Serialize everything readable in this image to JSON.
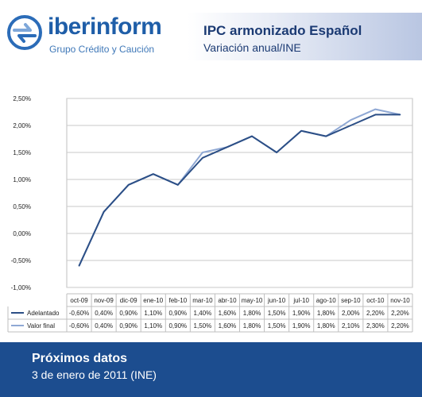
{
  "header": {
    "brand_name": "iberinform",
    "brand_subtitle": "Grupo Crédito y Caución",
    "title": "IPC armonizado Español",
    "subtitle": "Variación anual/INE"
  },
  "footer": {
    "title": "Próximos datos",
    "date": "3 de enero de 2011 (INE)"
  },
  "colors": {
    "adelantado": "#2c4f86",
    "valor_final": "#8fa8d4",
    "footer_bg": "#1c4d8f",
    "brand": "#1f5ea8"
  },
  "chart_data": {
    "type": "line",
    "categories": [
      "oct-09",
      "nov-09",
      "dic-09",
      "ene-10",
      "feb-10",
      "mar-10",
      "abr-10",
      "may-10",
      "jun-10",
      "jul-10",
      "ago-10",
      "sep-10",
      "oct-10",
      "nov-10"
    ],
    "series": [
      {
        "name": "Adelantado",
        "values": [
          -0.6,
          0.4,
          0.9,
          1.1,
          0.9,
          1.4,
          1.6,
          1.8,
          1.5,
          1.9,
          1.8,
          2.0,
          2.2,
          2.2
        ],
        "labels": [
          "-0,60%",
          "0,40%",
          "0,90%",
          "1,10%",
          "0,90%",
          "1,40%",
          "1,60%",
          "1,80%",
          "1,50%",
          "1,90%",
          "1,80%",
          "2,00%",
          "2,20%",
          "2,20%"
        ]
      },
      {
        "name": "Valor final",
        "values": [
          -0.6,
          0.4,
          0.9,
          1.1,
          0.9,
          1.5,
          1.6,
          1.8,
          1.5,
          1.9,
          1.8,
          2.1,
          2.3,
          2.2
        ],
        "labels": [
          "-0,60%",
          "0,40%",
          "0,90%",
          "1,10%",
          "0,90%",
          "1,50%",
          "1,60%",
          "1,80%",
          "1,50%",
          "1,90%",
          "1,80%",
          "2,10%",
          "2,30%",
          "2,20%"
        ]
      }
    ],
    "ylim": [
      -1.0,
      2.5
    ],
    "yticks": [
      -1.0,
      -0.5,
      0.0,
      0.5,
      1.0,
      1.5,
      2.0,
      2.5
    ],
    "ytick_labels": [
      "-1,00%",
      "-0,50%",
      "0,00%",
      "0,50%",
      "1,00%",
      "1,50%",
      "2,00%",
      "2,50%"
    ],
    "grid": true,
    "legend": "data table below chart"
  }
}
